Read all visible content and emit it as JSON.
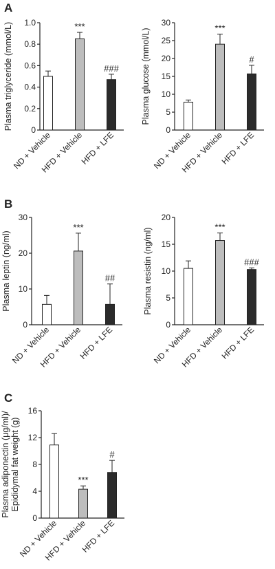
{
  "panels": [
    "A",
    "B",
    "C"
  ],
  "colors": {
    "nd": "#ffffff",
    "hfd": "#bdbdbd",
    "lfe": "#2b2b2b",
    "stroke": "#222222"
  },
  "chart_data": [
    {
      "type": "bar",
      "panel": "A",
      "categories": [
        "ND + Vehicle",
        "HFD + Vehicle",
        "HFD + LFE"
      ],
      "values": [
        0.5,
        0.85,
        0.47
      ],
      "errors": [
        0.05,
        0.06,
        0.05
      ],
      "significance": [
        "",
        "***",
        "###"
      ],
      "ylabel": "Plasma triglyceride (mmol/L)",
      "ylim": [
        0,
        1.0
      ],
      "yticks": [
        "0",
        "0.2",
        "0.4",
        "0.6",
        "0.8",
        "1.0"
      ]
    },
    {
      "type": "bar",
      "panel": "A",
      "categories": [
        "ND + Vehicle",
        "HFD + Vehicle",
        "HFD + LFE"
      ],
      "values": [
        7.8,
        24.0,
        15.7
      ],
      "errors": [
        0.6,
        2.8,
        2.4
      ],
      "significance": [
        "",
        "***",
        "#"
      ],
      "ylabel": "Plasma glucose (mmol/L)",
      "ylim": [
        0,
        30
      ],
      "yticks": [
        "0",
        "5",
        "10",
        "15",
        "20",
        "25",
        "30"
      ]
    },
    {
      "type": "bar",
      "panel": "B",
      "categories": [
        "ND + Vehicle",
        "HFD + Vehicle",
        "HFD + LFE"
      ],
      "values": [
        5.7,
        20.6,
        5.7
      ],
      "errors": [
        2.5,
        5.0,
        5.7
      ],
      "significance": [
        "",
        "***",
        "##"
      ],
      "ylabel": "Plasma leptin (ng/ml)",
      "ylim": [
        0,
        30
      ],
      "yticks": [
        "0",
        "10",
        "20",
        "30"
      ]
    },
    {
      "type": "bar",
      "panel": "B",
      "categories": [
        "ND + Vehicle",
        "HFD + Vehicle",
        "HFD + LFE"
      ],
      "values": [
        10.5,
        15.7,
        10.3
      ],
      "errors": [
        1.4,
        1.4,
        0.3
      ],
      "significance": [
        "",
        "***",
        "###"
      ],
      "ylabel": "Plasma resistin (ng/ml)",
      "ylim": [
        0,
        20
      ],
      "yticks": [
        "0",
        "5",
        "10",
        "15",
        "20"
      ]
    },
    {
      "type": "bar",
      "panel": "C",
      "categories": [
        "ND + Vehicle",
        "HFD + Vehicle",
        "HFD + LFE"
      ],
      "values": [
        10.9,
        4.3,
        6.8
      ],
      "errors": [
        1.7,
        0.5,
        1.8
      ],
      "significance": [
        "",
        "***",
        "#"
      ],
      "ylabel": [
        "Plasma adiponectin (μg/ml)/",
        "Epididymal fat weight (g)"
      ],
      "ylim": [
        0,
        16
      ],
      "yticks": [
        "0",
        "4",
        "8",
        "12",
        "16"
      ]
    }
  ]
}
